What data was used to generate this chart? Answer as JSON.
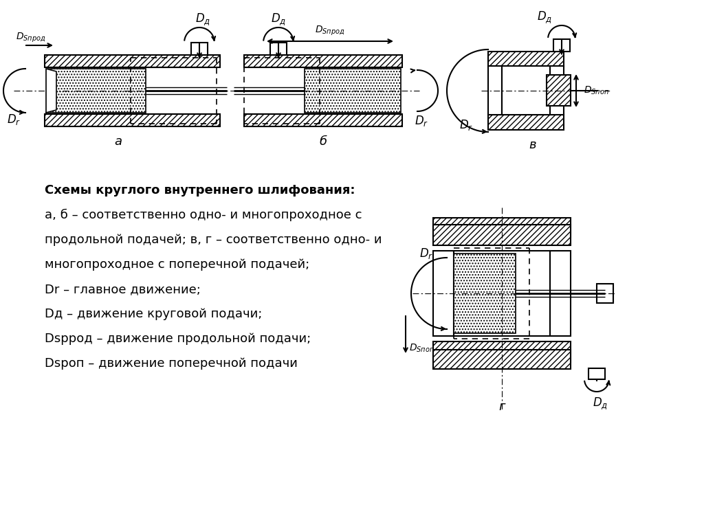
{
  "bg_color": "#ffffff",
  "description_lines": [
    [
      "Схемы круглого внутреннего шлифования:",
      true
    ],
    [
      "а, б – соответственно одно- и многопроходное с",
      false
    ],
    [
      "продольной подачей; в, г – соответственно одно- и",
      false
    ],
    [
      "многопроходное с поперечной подачей;",
      false
    ],
    [
      "Dr – главное движение;",
      false
    ],
    [
      "Dд – движение круговой подачи;",
      false
    ],
    [
      "Dspрод – движение продольной подачи;",
      false
    ],
    [
      "Dspоп – движение поперечной подачи",
      false
    ]
  ]
}
